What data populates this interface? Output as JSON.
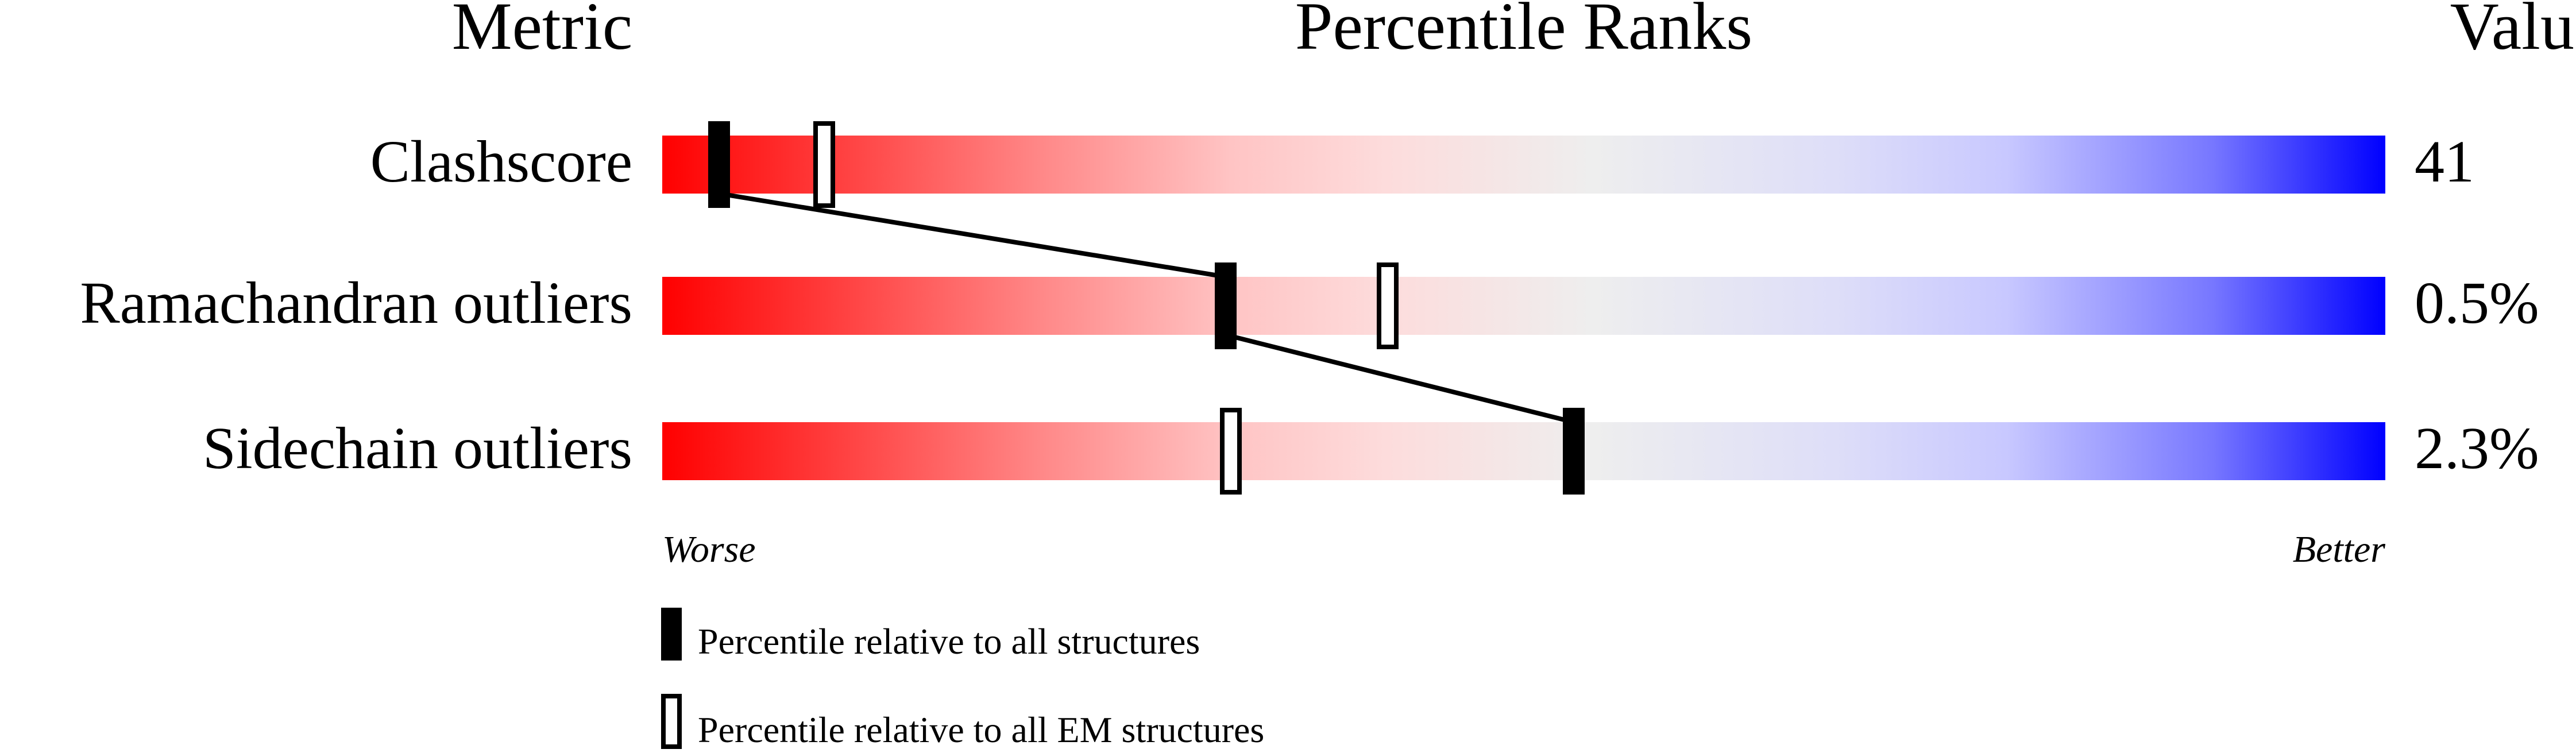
{
  "headers": {
    "metric": "Metric",
    "percentile": "Percentile Ranks",
    "value": "Value"
  },
  "axis": {
    "worse": "Worse",
    "better": "Better"
  },
  "legend": {
    "all": "Percentile relative to all structures",
    "em": "Percentile relative to all EM structures"
  },
  "colors": {
    "worse": "#ff0000",
    "neutral": "#eeeeee",
    "better": "#0000ff",
    "marker": "#000000"
  },
  "chart_data": {
    "type": "bar",
    "xlim": [
      0,
      100
    ],
    "metrics": [
      {
        "name": "Clashscore",
        "value": "41",
        "percentile_all": 3.3,
        "percentile_em": 9.4
      },
      {
        "name": "Ramachandran outliers",
        "value": "0.5%",
        "percentile_all": 32.7,
        "percentile_em": 42.1
      },
      {
        "name": "Sidechain outliers",
        "value": "2.3%",
        "percentile_all": 52.9,
        "percentile_em": 33.0
      }
    ]
  }
}
